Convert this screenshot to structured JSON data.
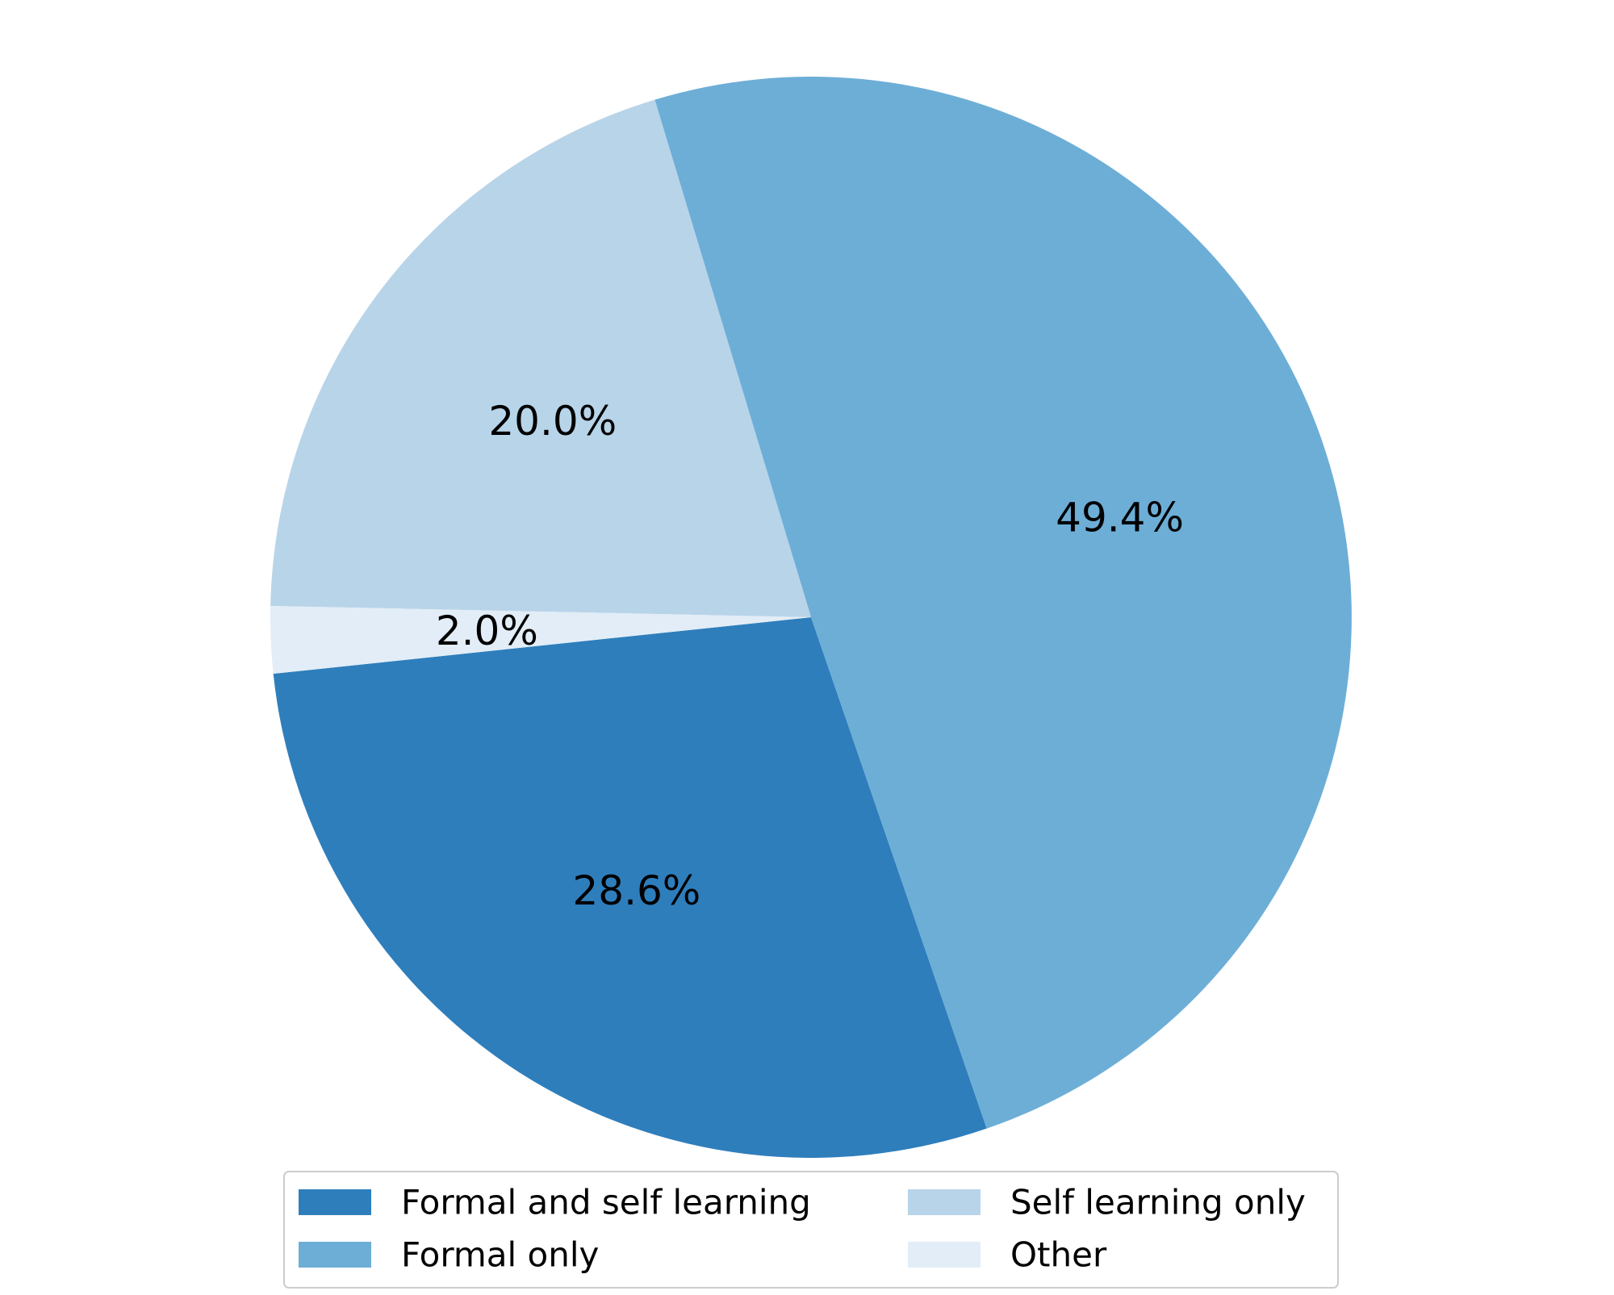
{
  "chart_data": {
    "type": "pie",
    "slices": [
      {
        "label": "Formal and self learning",
        "value": 28.6,
        "display": "28.6%",
        "color": "#2e7ebc"
      },
      {
        "label": "Formal only",
        "value": 49.4,
        "display": "49.4%",
        "color": "#6daed7"
      },
      {
        "label": "Self learning only",
        "value": 20.0,
        "display": "20.0%",
        "color": "#b8d4e9"
      },
      {
        "label": "Other",
        "value": 2.0,
        "display": "2.0%",
        "color": "#e2edf7"
      }
    ],
    "legend": {
      "placement": "bottom-center",
      "columns": 2,
      "entries": [
        "Formal and self learning",
        "Formal only",
        "Self learning only",
        "Other"
      ]
    }
  }
}
